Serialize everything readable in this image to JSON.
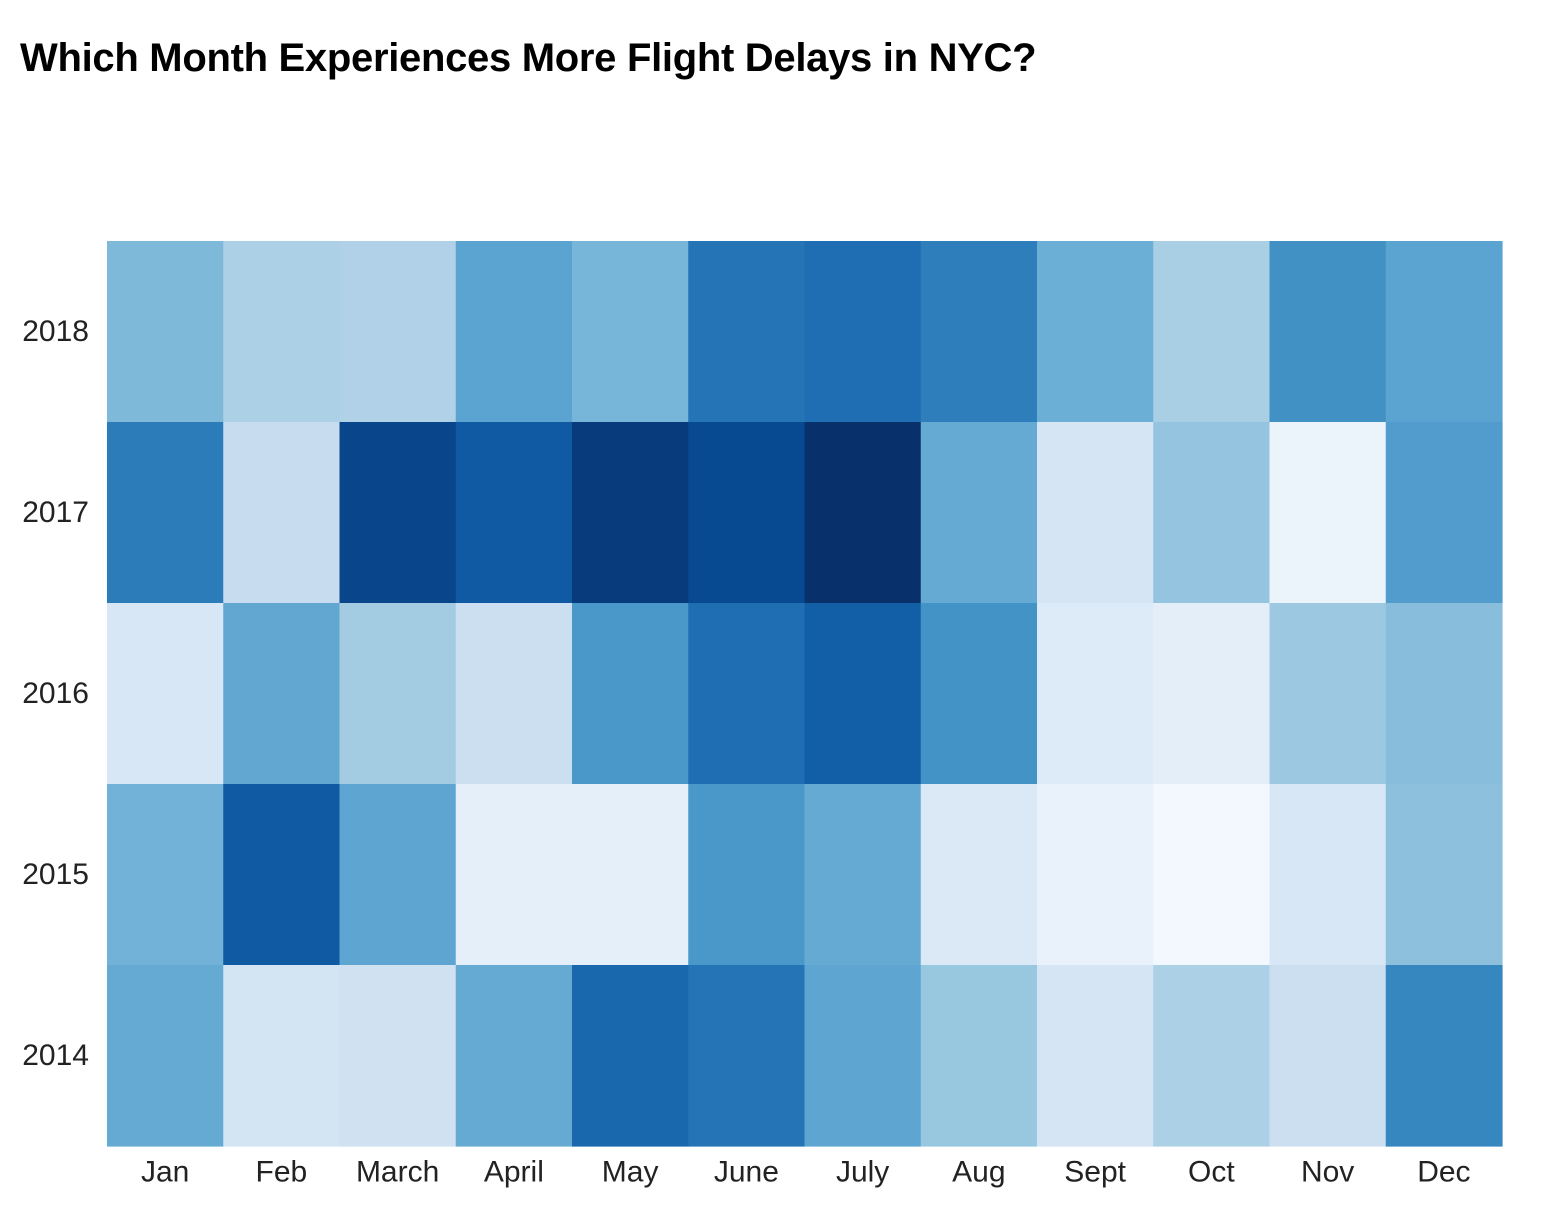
{
  "chart_data": {
    "type": "heatmap",
    "title": "Which Month Experiences More Flight Delays in NYC?",
    "xlabel": "",
    "ylabel": "",
    "x_categories": [
      "Jan",
      "Feb",
      "March",
      "April",
      "May",
      "June",
      "July",
      "Aug",
      "Sept",
      "Oct",
      "Nov",
      "Dec"
    ],
    "y_categories": [
      "2018",
      "2017",
      "2016",
      "2015",
      "2014"
    ],
    "colorscale": "Blues",
    "color_range": [
      "#f7fbff",
      "#08306b"
    ],
    "values": [
      [
        0.45,
        0.33,
        0.32,
        0.55,
        0.47,
        0.74,
        0.76,
        0.7,
        0.5,
        0.34,
        0.63,
        0.55
      ],
      [
        0.71,
        0.24,
        0.92,
        0.84,
        0.96,
        0.9,
        1.0,
        0.52,
        0.17,
        0.4,
        0.06,
        0.58
      ],
      [
        0.16,
        0.53,
        0.36,
        0.22,
        0.6,
        0.76,
        0.82,
        0.62,
        0.13,
        0.1,
        0.38,
        0.43
      ],
      [
        0.48,
        0.84,
        0.54,
        0.09,
        0.09,
        0.6,
        0.52,
        0.14,
        0.07,
        0.02,
        0.16,
        0.42
      ],
      [
        0.52,
        0.18,
        0.2,
        0.52,
        0.79,
        0.74,
        0.54,
        0.39,
        0.17,
        0.33,
        0.22,
        0.67
      ]
    ],
    "grid": false,
    "legend": "none"
  }
}
